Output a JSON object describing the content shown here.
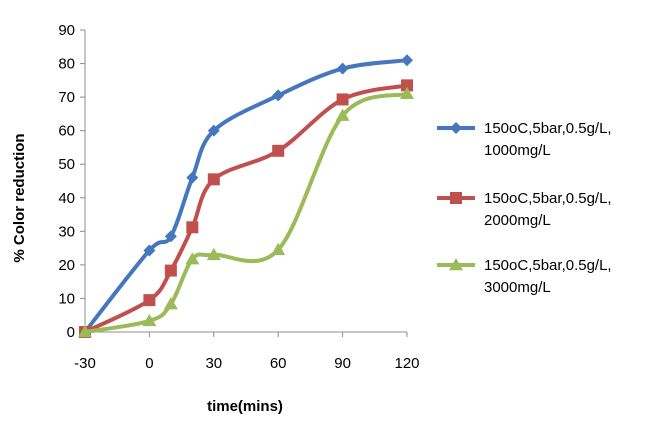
{
  "chart_data": {
    "type": "line",
    "xlabel": "time(mins)",
    "ylabel": "% Color reduction",
    "x": [
      -30,
      0,
      10,
      20,
      30,
      60,
      90,
      120
    ],
    "xticks": [
      -30,
      0,
      30,
      60,
      90,
      120
    ],
    "yticks": [
      0,
      10,
      20,
      30,
      40,
      50,
      60,
      70,
      80,
      90
    ],
    "xlim": [
      -30,
      120
    ],
    "ylim": [
      0,
      90
    ],
    "grid": false,
    "smooth": true,
    "legend_position": "right",
    "series": [
      {
        "name_lines": [
          "150oC,5bar,0.5g/L,",
          "1000mg/L"
        ],
        "color": "#4677BE",
        "marker": "diamond",
        "values": [
          0,
          24.3,
          28.5,
          46,
          60,
          70.5,
          78.5,
          81
        ]
      },
      {
        "name_lines": [
          "150oC,5bar,0.5g/L,",
          "2000mg/L"
        ],
        "color": "#C0504D",
        "marker": "square",
        "values": [
          0,
          9.5,
          18.3,
          31.2,
          45.5,
          54,
          69.3,
          73.5
        ]
      },
      {
        "name_lines": [
          "150oC,5bar,0.5g/L,",
          "3000mg/L"
        ],
        "color": "#9BBB59",
        "marker": "triangle",
        "values": [
          0,
          3.3,
          8.3,
          21.7,
          23,
          24.5,
          64.5,
          71
        ]
      }
    ]
  }
}
